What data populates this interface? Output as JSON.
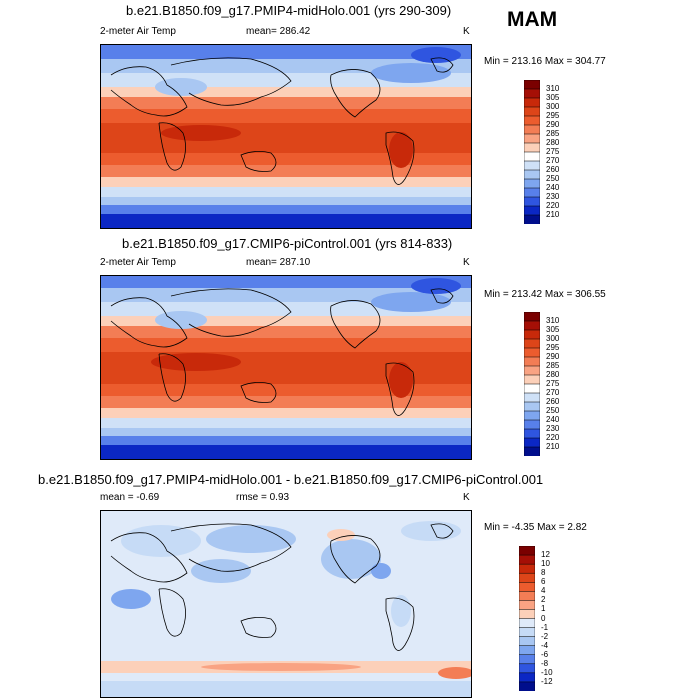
{
  "season": "MAM",
  "panels": [
    {
      "title": "b.e21.B1850.f09_g17.PMIP4-midHolo.001 (yrs 290-309)",
      "variable": "2-meter Air Temp",
      "stat_text": "mean= 286.42",
      "units": "K",
      "minmax": "Min = 213.16 Max = 304.77"
    },
    {
      "title": "b.e21.B1850.f09_g17.CMIP6-piControl.001 (yrs 814-833)",
      "variable": "2-meter Air Temp",
      "stat_text": "mean= 287.10",
      "units": "K",
      "minmax": "Min = 213.42 Max = 306.55"
    },
    {
      "title": "b.e21.B1850.f09_g17.PMIP4-midHolo.001 - b.e21.B1850.f09_g17.CMIP6-piControl.001",
      "mean_text": "mean =  -0.69",
      "rmse_text": "rmse =   0.93",
      "units": "K",
      "minmax": "Min =  -4.35 Max =   2.82"
    }
  ],
  "colorbars": {
    "temp": {
      "labels": [
        "310",
        "305",
        "300",
        "295",
        "290",
        "285",
        "280",
        "275",
        "270",
        "260",
        "250",
        "240",
        "230",
        "220",
        "210"
      ],
      "colors": [
        "#7a0000",
        "#a50f06",
        "#c8290a",
        "#dd4519",
        "#ec5c2e",
        "#f37d55",
        "#f9a383",
        "#fcd0b9",
        "#ffffff",
        "#cfe1f7",
        "#a9c7f2",
        "#7ea6ef",
        "#5880ea",
        "#2f55e0",
        "#0b27c4",
        "#000e8c"
      ]
    },
    "diff": {
      "labels": [
        "12",
        "10",
        "8",
        "6",
        "4",
        "2",
        "1",
        "0",
        "-1",
        "-2",
        "-4",
        "-6",
        "-8",
        "-10",
        "-12"
      ],
      "colors": [
        "#7a0000",
        "#a50f06",
        "#c8290a",
        "#dd4519",
        "#ec5c2e",
        "#f37d55",
        "#f9a383",
        "#fcd0b9",
        "#dfeaf9",
        "#c6dbf6",
        "#a9c7f2",
        "#7ea6ef",
        "#5880ea",
        "#2f55e0",
        "#0b27c4",
        "#000e8c"
      ]
    }
  },
  "chart_data": [
    {
      "type": "heatmap",
      "title": "b.e21.B1850.f09_g17.PMIP4-midHolo.001 (yrs 290-309)",
      "variable": "2-meter Air Temp",
      "units": "K",
      "mean": 286.42,
      "min": 213.16,
      "max": 304.77,
      "levels": [
        210,
        220,
        230,
        240,
        250,
        260,
        270,
        275,
        280,
        285,
        290,
        295,
        300,
        305,
        310
      ]
    },
    {
      "type": "heatmap",
      "title": "b.e21.B1850.f09_g17.CMIP6-piControl.001 (yrs 814-833)",
      "variable": "2-meter Air Temp",
      "units": "K",
      "mean": 287.1,
      "min": 213.42,
      "max": 306.55,
      "levels": [
        210,
        220,
        230,
        240,
        250,
        260,
        270,
        275,
        280,
        285,
        290,
        295,
        300,
        305,
        310
      ]
    },
    {
      "type": "heatmap",
      "title": "b.e21.B1850.f09_g17.PMIP4-midHolo.001 - b.e21.B1850.f09_g17.CMIP6-piControl.001",
      "units": "K",
      "mean": -0.69,
      "rmse": 0.93,
      "min": -4.35,
      "max": 2.82,
      "levels": [
        -12,
        -10,
        -8,
        -6,
        -4,
        -2,
        -1,
        0,
        1,
        2,
        4,
        6,
        8,
        10,
        12
      ]
    }
  ]
}
